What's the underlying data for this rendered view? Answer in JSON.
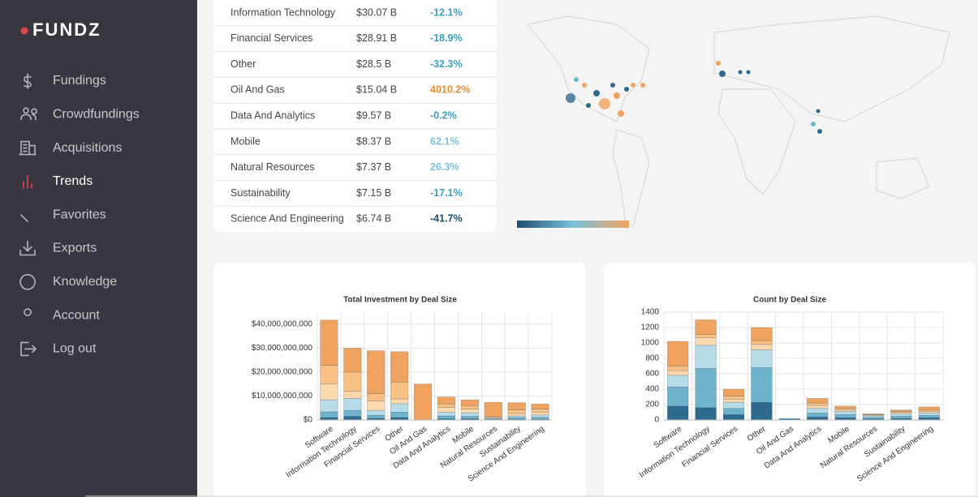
{
  "sidebar": {
    "logo": "FUNDZ",
    "nav": [
      "Fundings",
      "Crowdfundings",
      "Acquisitions",
      "Trends",
      "Favorites",
      "Exports",
      "Knowledge",
      "Account",
      "Log out"
    ],
    "active": "Trends"
  },
  "table": {
    "rows": [
      [
        "Information Technology",
        "$30.07 B",
        "-12.1%"
      ],
      [
        "Financial Services",
        "$28.91 B",
        "-18.9%"
      ],
      [
        "Other",
        "$28.5 B",
        "-32.3%"
      ],
      [
        "Oil And Gas",
        "$15.04 B",
        "4010.2%"
      ],
      [
        "Data And Analytics",
        "$9.57 B",
        "-0.2%"
      ],
      [
        "Mobile",
        "$8.37 B",
        "62.1%"
      ],
      [
        "Natural Resources",
        "$7.37 B",
        "26.3%"
      ],
      [
        "Sustainability",
        "$7.15 B",
        "-17.1%"
      ],
      [
        "Science And Engineering",
        "$6.74 B",
        "-41.7%"
      ]
    ],
    "change_colors": [
      "#3a9fbf",
      "#3a9fbf",
      "#3a9fbf",
      "#ee8a2e",
      "#3a9fbf",
      "#7cc0dc",
      "#7cc0dc",
      "#3a9fbf",
      "#1f4e6b"
    ]
  },
  "chart_data": [
    {
      "type": "stacked-bar",
      "title": "Total Investment by Deal Size",
      "categories": [
        "Software",
        "Information Technology",
        "Financial Services",
        "Other",
        "Oil And Gas",
        "Data And Analytics",
        "Mobile",
        "Natural Resources",
        "Sustainability",
        "Science And Engineering"
      ],
      "ylim": [
        0,
        45000000000
      ],
      "yticks": [
        {
          "value": 0,
          "label": "$0"
        },
        {
          "value": 10000000000,
          "label": "$10,000,000,000"
        },
        {
          "value": 20000000000,
          "label": "$20,000,000,000"
        },
        {
          "value": 30000000000,
          "label": "$30,000,000,000"
        },
        {
          "value": 40000000000,
          "label": "$40,000,000,000"
        }
      ],
      "grid": true,
      "series": [
        {
          "color": "#2e6a8e",
          "values": [
            1000000000,
            1500000000,
            700000000,
            1000000000,
            0,
            500000000,
            500000000,
            100000000,
            300000000,
            300000000
          ]
        },
        {
          "color": "#6fb2cc",
          "values": [
            2400000000,
            2500000000,
            1300000000,
            2300000000,
            100000000,
            1200000000,
            1000000000,
            300000000,
            700000000,
            800000000
          ]
        },
        {
          "color": "#b7dbe9",
          "values": [
            5000000000,
            5000000000,
            2000000000,
            3500000000,
            0,
            1500000000,
            1500000000,
            300000000,
            700000000,
            1000000000
          ]
        },
        {
          "color": "#fcd9ad",
          "values": [
            6700000000,
            3000000000,
            4000000000,
            2000000000,
            0,
            2000000000,
            1500000000,
            300000000,
            1000000000,
            1200000000
          ]
        },
        {
          "color": "#f9c084",
          "values": [
            7700000000,
            8000000000,
            3000000000,
            7000000000,
            0,
            1500000000,
            1500000000,
            500000000,
            1500000000,
            1200000000
          ]
        },
        {
          "color": "#f0a35e",
          "values": [
            18900000000,
            10000000000,
            17900000000,
            12700000000,
            14900000000,
            2900000000,
            2400000000,
            5900000000,
            3000000000,
            2200000000
          ]
        }
      ]
    },
    {
      "type": "stacked-bar",
      "title": "Count by Deal Size",
      "categories": [
        "Software",
        "Information Technology",
        "Financial Services",
        "Other",
        "Oil And Gas",
        "Data And Analytics",
        "Mobile",
        "Natural Resources",
        "Sustainability",
        "Science And Engineering"
      ],
      "ylim": [
        0,
        1400
      ],
      "yticks": [
        0,
        200,
        400,
        600,
        800,
        1000,
        1200,
        1400
      ],
      "grid": true,
      "series": [
        {
          "color": "#2e6a8e",
          "values": [
            180,
            160,
            70,
            230,
            10,
            40,
            30,
            15,
            20,
            30
          ]
        },
        {
          "color": "#6fb2cc",
          "values": [
            250,
            510,
            80,
            450,
            10,
            50,
            40,
            20,
            30,
            30
          ]
        },
        {
          "color": "#b7dbe9",
          "values": [
            150,
            300,
            80,
            230,
            0,
            60,
            40,
            20,
            30,
            30
          ]
        },
        {
          "color": "#fcd9ad",
          "values": [
            60,
            100,
            40,
            70,
            0,
            40,
            20,
            10,
            20,
            20
          ]
        },
        {
          "color": "#f9c084",
          "values": [
            60,
            40,
            40,
            50,
            0,
            30,
            20,
            5,
            10,
            20
          ]
        },
        {
          "color": "#f0a35e",
          "values": [
            320,
            190,
            90,
            170,
            0,
            60,
            30,
            10,
            20,
            40
          ]
        }
      ]
    }
  ]
}
